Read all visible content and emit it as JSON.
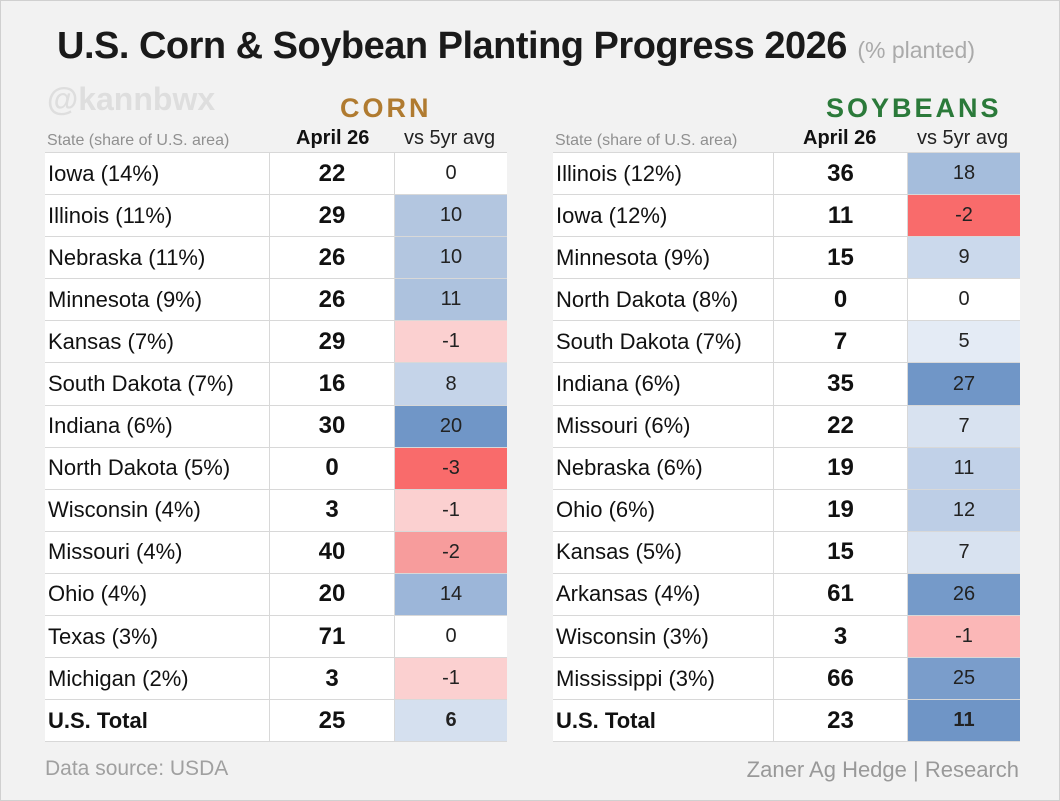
{
  "title": "U.S. Corn & Soybean Planting Progress 2026",
  "subtitle": "(% planted)",
  "watermark": "@kannbwx",
  "corn": {
    "heading": "CORN",
    "heading_color": "#b07b30",
    "col_state": "State (share of U.S. area)",
    "col_date": "April 26",
    "col_avg": "vs 5yr avg",
    "rows": [
      {
        "state": "Iowa (14%)",
        "value": "22",
        "avg": "0",
        "color": "#ffffff"
      },
      {
        "state": "Illinois (11%)",
        "value": "29",
        "avg": "10",
        "color": "#b3c6e0"
      },
      {
        "state": "Nebraska (11%)",
        "value": "26",
        "avg": "10",
        "color": "#b3c6e0"
      },
      {
        "state": "Minnesota (9%)",
        "value": "26",
        "avg": "11",
        "color": "#adc2de"
      },
      {
        "state": "Kansas (7%)",
        "value": "29",
        "avg": "-1",
        "color": "#fbd0d0"
      },
      {
        "state": "South Dakota (7%)",
        "value": "16",
        "avg": "8",
        "color": "#c5d4e9"
      },
      {
        "state": "Indiana (6%)",
        "value": "30",
        "avg": "20",
        "color": "#7096c7"
      },
      {
        "state": "North Dakota (5%)",
        "value": "0",
        "avg": "-3",
        "color": "#f96b6b"
      },
      {
        "state": "Wisconsin (4%)",
        "value": "3",
        "avg": "-1",
        "color": "#fbd0d0"
      },
      {
        "state": "Missouri (4%)",
        "value": "40",
        "avg": "-2",
        "color": "#f79c9c"
      },
      {
        "state": "Ohio (4%)",
        "value": "20",
        "avg": "14",
        "color": "#9cb6d9"
      },
      {
        "state": "Texas (3%)",
        "value": "71",
        "avg": "0",
        "color": "#ffffff"
      },
      {
        "state": "Michigan (2%)",
        "value": "3",
        "avg": "-1",
        "color": "#fbd0d0"
      }
    ],
    "total": {
      "state": "U.S. Total",
      "value": "25",
      "avg": "6",
      "color": "#d5e0ef"
    }
  },
  "soy": {
    "heading": "SOYBEANS",
    "heading_color": "#2b7a3a",
    "col_state": "State (share of U.S. area)",
    "col_date": "April 26",
    "col_avg": "vs 5yr avg",
    "rows": [
      {
        "state": "Illinois (12%)",
        "value": "36",
        "avg": "18",
        "color": "#a5bddc"
      },
      {
        "state": "Iowa (12%)",
        "value": "11",
        "avg": "-2",
        "color": "#f96b6b"
      },
      {
        "state": "Minnesota (9%)",
        "value": "15",
        "avg": "9",
        "color": "#cbd9ec"
      },
      {
        "state": "North Dakota (8%)",
        "value": "0",
        "avg": "0",
        "color": "#ffffff"
      },
      {
        "state": "South Dakota (7%)",
        "value": "7",
        "avg": "5",
        "color": "#e4ebf5"
      },
      {
        "state": "Indiana (6%)",
        "value": "35",
        "avg": "27",
        "color": "#7096c7"
      },
      {
        "state": "Missouri (6%)",
        "value": "22",
        "avg": "7",
        "color": "#d8e2f0"
      },
      {
        "state": "Nebraska (6%)",
        "value": "19",
        "avg": "11",
        "color": "#c1d1e8"
      },
      {
        "state": "Ohio (6%)",
        "value": "19",
        "avg": "12",
        "color": "#bdcee6"
      },
      {
        "state": "Kansas (5%)",
        "value": "15",
        "avg": "7",
        "color": "#d8e2f0"
      },
      {
        "state": "Arkansas (4%)",
        "value": "61",
        "avg": "26",
        "color": "#759ac9"
      },
      {
        "state": "Wisconsin (3%)",
        "value": "3",
        "avg": "-1",
        "color": "#fbb7b7"
      },
      {
        "state": "Mississippi (3%)",
        "value": "66",
        "avg": "25",
        "color": "#7a9dcb"
      }
    ],
    "total": {
      "state": "U.S. Total",
      "value": "23",
      "avg": "11",
      "color": "#6f95c6"
    }
  },
  "footer": {
    "source": "Data source: USDA",
    "credit": "Zaner Ag Hedge | Research"
  }
}
